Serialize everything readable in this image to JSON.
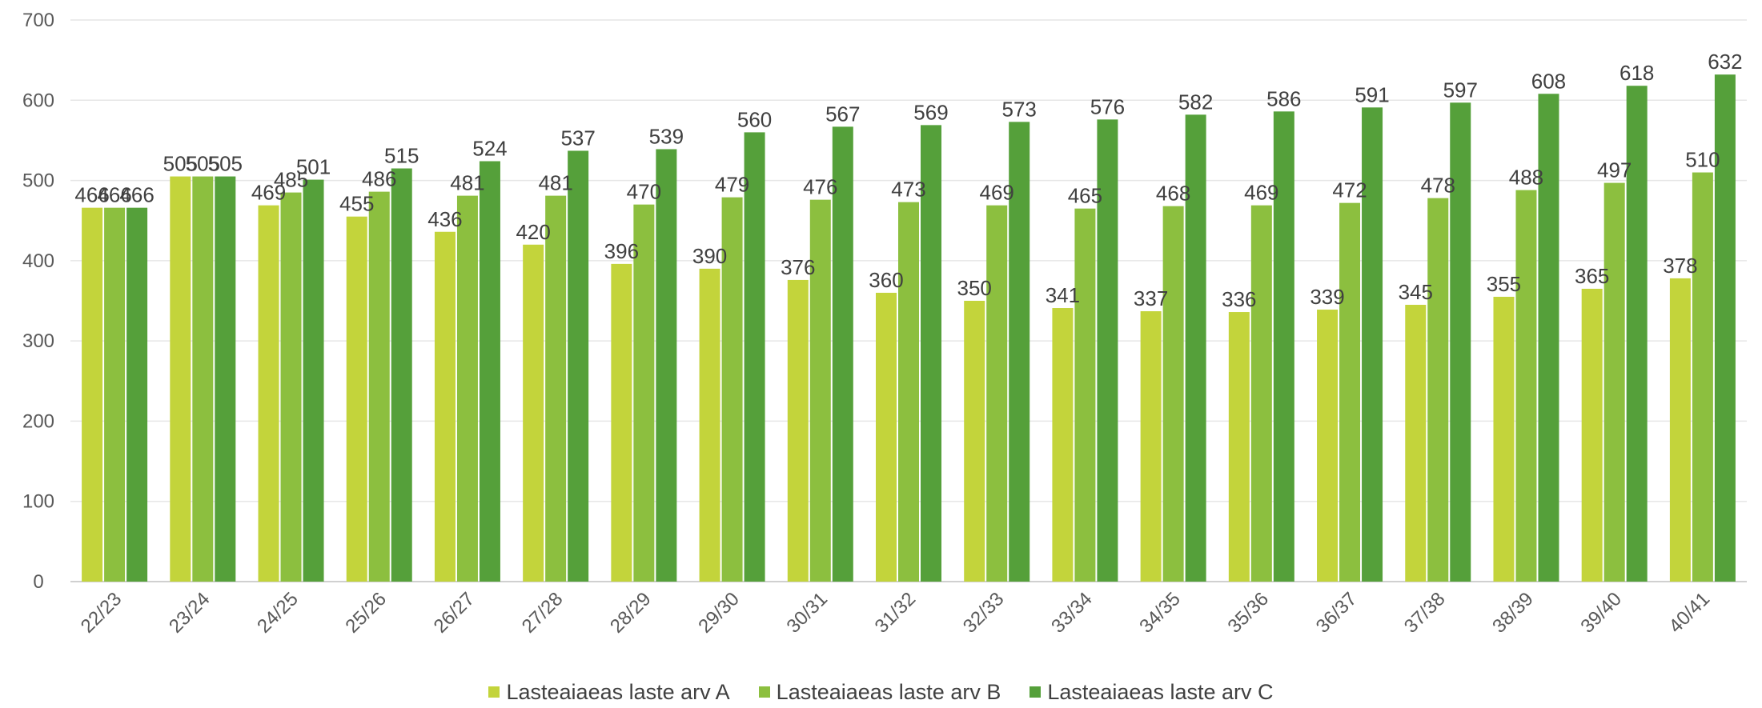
{
  "chart_data": {
    "type": "bar",
    "categories": [
      "22/23",
      "23/24",
      "24/25",
      "25/26",
      "26/27",
      "27/28",
      "28/29",
      "29/30",
      "30/31",
      "31/32",
      "32/33",
      "33/34",
      "34/35",
      "35/36",
      "36/37",
      "37/38",
      "38/39",
      "39/40",
      "40/41"
    ],
    "series": [
      {
        "name": "Lasteaiaeas laste arv A",
        "color": "#c3d43b",
        "values": [
          466,
          505,
          469,
          455,
          436,
          420,
          396,
          390,
          376,
          360,
          350,
          341,
          337,
          336,
          339,
          345,
          355,
          365,
          378
        ]
      },
      {
        "name": "Lasteaiaeas laste arv B",
        "color": "#8cbf3f",
        "values": [
          466,
          505,
          485,
          486,
          481,
          481,
          470,
          479,
          476,
          473,
          469,
          465,
          468,
          469,
          472,
          478,
          488,
          497,
          510
        ]
      },
      {
        "name": "Lasteaiaeas laste arv C",
        "color": "#55a03a",
        "values": [
          466,
          505,
          501,
          515,
          524,
          537,
          539,
          560,
          567,
          569,
          573,
          576,
          582,
          586,
          591,
          597,
          608,
          618,
          632
        ]
      }
    ],
    "data_labels": [
      [
        "466",
        "505",
        "469",
        "455",
        "436",
        "420",
        "396",
        "390",
        "376",
        "360",
        "350",
        "341",
        "337",
        "336",
        "339",
        "345",
        "355",
        "365",
        "378"
      ],
      [
        "466",
        "505",
        "485",
        "486",
        "481",
        "481",
        "470",
        "479",
        "476",
        "473",
        "469",
        "465",
        "468",
        "469",
        "472",
        "478",
        "488",
        "497",
        "510"
      ],
      [
        "466",
        "505",
        "501",
        "515",
        "524",
        "537",
        "539",
        "560",
        "567",
        "569",
        "573",
        "576",
        "582",
        "586",
        "591",
        "597",
        "608",
        "618",
        "632"
      ]
    ],
    "y_ticks": [
      "0",
      "100",
      "200",
      "300",
      "400",
      "500",
      "600",
      "700"
    ],
    "ylim": [
      0,
      700
    ],
    "grid": true,
    "legend_position": "bottom",
    "title": "",
    "xlabel": "",
    "ylabel": ""
  }
}
